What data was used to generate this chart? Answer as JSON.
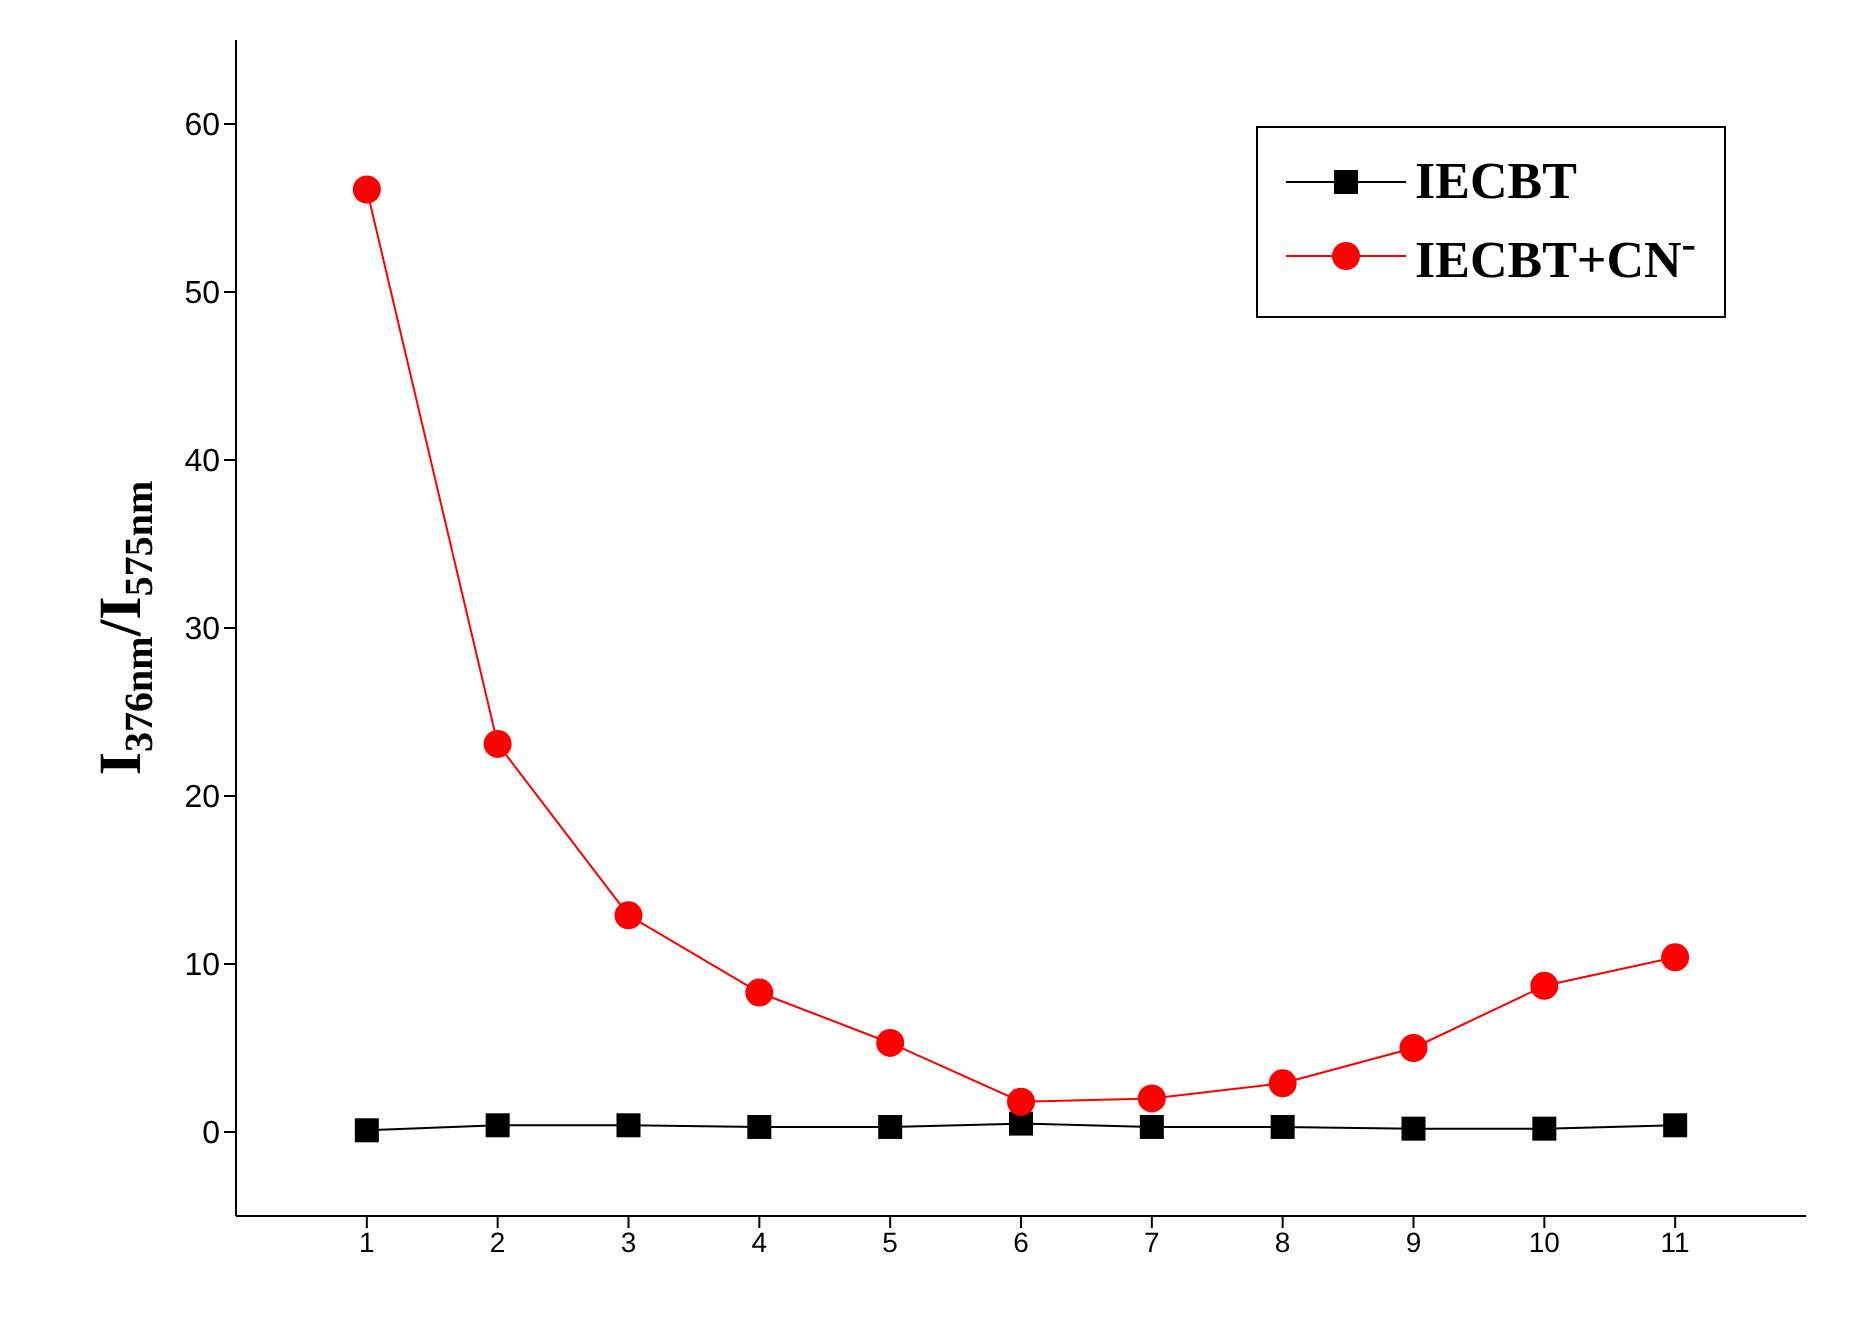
{
  "chart_data": {
    "type": "line",
    "ylabel": "I$_{376nm}$/I$_{575nm}$",
    "x": [
      1,
      2,
      3,
      4,
      5,
      6,
      7,
      8,
      9,
      10,
      11
    ],
    "series": [
      {
        "name": "IECBT",
        "color": "#000000",
        "marker": "square",
        "values": [
          0.1,
          0.4,
          0.4,
          0.3,
          0.3,
          0.5,
          0.3,
          0.3,
          0.2,
          0.2,
          0.4
        ]
      },
      {
        "name": "IECBT+CN$^{-}$",
        "color": "#ff0000",
        "marker": "circle",
        "values": [
          56.1,
          23.1,
          12.9,
          8.3,
          5.3,
          1.8,
          2.0,
          2.9,
          5.0,
          8.7,
          10.4
        ]
      }
    ],
    "xlim": [
      0,
      12
    ],
    "xticks": [
      1,
      2,
      3,
      4,
      5,
      6,
      7,
      8,
      9,
      10,
      11
    ],
    "ylim": [
      -5,
      65
    ],
    "yticks": [
      0,
      10,
      20,
      30,
      40,
      50,
      60
    ],
    "grid": false,
    "legend": "top right",
    "line_style": "solid"
  }
}
